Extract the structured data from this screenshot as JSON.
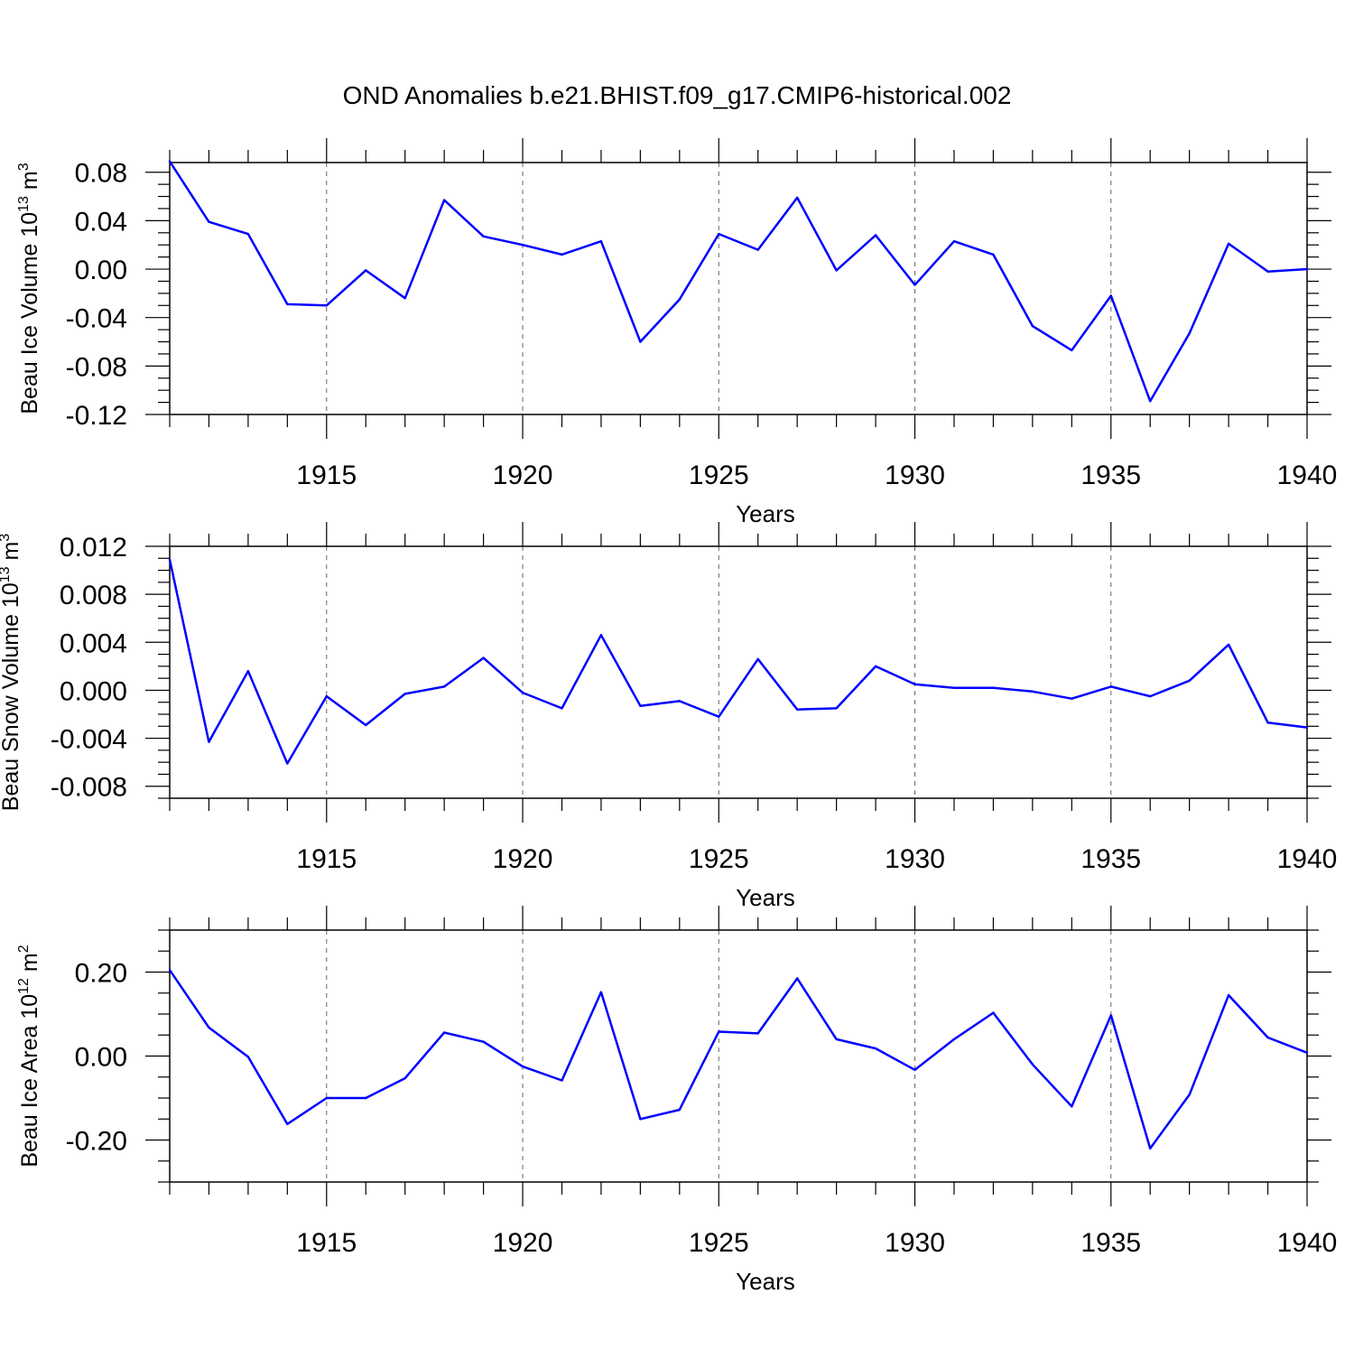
{
  "title": "OND Anomalies b.e21.BHIST.f09_g17.CMIP6-historical.002",
  "colors": {
    "series": "#0000ff",
    "axis": "#000000",
    "grid": "#666666"
  },
  "chart_data": [
    {
      "type": "line",
      "name": "ice-volume",
      "ylabel": {
        "main": "Beau Ice Volume 10",
        "exp": "13",
        "unit": " m",
        "unit_exp": "3"
      },
      "xlabel": "Years",
      "xlim": [
        1911,
        1940
      ],
      "ylim": [
        -0.12,
        0.088
      ],
      "yticks": [
        -0.12,
        -0.08,
        -0.04,
        0.0,
        0.04,
        0.08
      ],
      "ytick_labels": [
        "-0.12",
        "-0.08",
        "-0.04",
        "0.00",
        "0.04",
        "0.08"
      ],
      "yminor_step": 0.01,
      "xticks": [
        1915,
        1920,
        1925,
        1930,
        1935,
        1940
      ],
      "xtick_labels": [
        "1915",
        "1920",
        "1925",
        "1930",
        "1935",
        "1940"
      ],
      "grid": "dashed vertical at major x ticks",
      "x": [
        1911,
        1912,
        1913,
        1914,
        1915,
        1916,
        1917,
        1918,
        1919,
        1920,
        1921,
        1922,
        1923,
        1924,
        1925,
        1926,
        1927,
        1928,
        1929,
        1930,
        1931,
        1932,
        1933,
        1934,
        1935,
        1936,
        1937,
        1938,
        1939,
        1940
      ],
      "values": [
        0.089,
        0.039,
        0.029,
        -0.029,
        -0.03,
        -0.001,
        -0.024,
        0.057,
        0.027,
        0.02,
        0.012,
        0.023,
        -0.06,
        -0.025,
        0.029,
        0.016,
        0.059,
        -0.001,
        0.028,
        -0.013,
        0.023,
        0.012,
        -0.047,
        -0.067,
        -0.022,
        -0.109,
        -0.053,
        0.021,
        -0.002,
        0.0
      ]
    },
    {
      "type": "line",
      "name": "snow-volume",
      "ylabel": {
        "main": "Beau Snow Volume 10",
        "exp": "13",
        "unit": " m",
        "unit_exp": "3"
      },
      "xlabel": "Years",
      "xlim": [
        1911,
        1940
      ],
      "ylim": [
        -0.009,
        0.012
      ],
      "yticks": [
        -0.008,
        -0.004,
        0.0,
        0.004,
        0.008,
        0.012
      ],
      "ytick_labels": [
        "-0.008",
        "-0.004",
        "0.000",
        "0.004",
        "0.008",
        "0.012"
      ],
      "yminor_step": 0.001,
      "xticks": [
        1915,
        1920,
        1925,
        1930,
        1935,
        1940
      ],
      "xtick_labels": [
        "1915",
        "1920",
        "1925",
        "1930",
        "1935",
        "1940"
      ],
      "grid": "dashed vertical at major x ticks",
      "x": [
        1911,
        1912,
        1913,
        1914,
        1915,
        1916,
        1917,
        1918,
        1919,
        1920,
        1921,
        1922,
        1923,
        1924,
        1925,
        1926,
        1927,
        1928,
        1929,
        1930,
        1931,
        1932,
        1933,
        1934,
        1935,
        1936,
        1937,
        1938,
        1939,
        1940
      ],
      "values": [
        0.0109,
        -0.0043,
        0.0016,
        -0.0061,
        -0.0005,
        -0.0029,
        -0.0003,
        0.0003,
        0.0027,
        -0.0002,
        -0.0015,
        0.0046,
        -0.0013,
        -0.0009,
        -0.0022,
        0.0026,
        -0.0016,
        -0.0015,
        0.002,
        0.0005,
        0.0002,
        0.0002,
        -0.0001,
        -0.0007,
        0.0003,
        -0.0005,
        0.0008,
        0.0038,
        -0.0027,
        -0.0031
      ]
    },
    {
      "type": "line",
      "name": "ice-area",
      "ylabel": {
        "main": "Beau Ice Area 10",
        "exp": "12",
        "unit": " m",
        "unit_exp": "2"
      },
      "xlabel": "Years",
      "xlim": [
        1911,
        1940
      ],
      "ylim": [
        -0.3,
        0.3
      ],
      "yticks": [
        -0.2,
        0.0,
        0.2
      ],
      "ytick_labels": [
        "-0.20",
        "0.00",
        "0.20"
      ],
      "yminor_step": 0.05,
      "xticks": [
        1915,
        1920,
        1925,
        1930,
        1935,
        1940
      ],
      "xtick_labels": [
        "1915",
        "1920",
        "1925",
        "1930",
        "1935",
        "1940"
      ],
      "grid": "dashed vertical at major x ticks",
      "x": [
        1911,
        1912,
        1913,
        1914,
        1915,
        1916,
        1917,
        1918,
        1919,
        1920,
        1921,
        1922,
        1923,
        1924,
        1925,
        1926,
        1927,
        1928,
        1929,
        1930,
        1931,
        1932,
        1933,
        1934,
        1935,
        1936,
        1937,
        1938,
        1939,
        1940
      ],
      "values": [
        0.205,
        0.068,
        -0.002,
        -0.162,
        -0.1,
        -0.1,
        -0.053,
        0.056,
        0.034,
        -0.025,
        -0.058,
        0.152,
        -0.15,
        -0.128,
        0.058,
        0.054,
        0.185,
        0.04,
        0.018,
        -0.033,
        0.04,
        0.103,
        -0.02,
        -0.12,
        0.097,
        -0.22,
        -0.092,
        0.145,
        0.044,
        0.008
      ]
    }
  ]
}
